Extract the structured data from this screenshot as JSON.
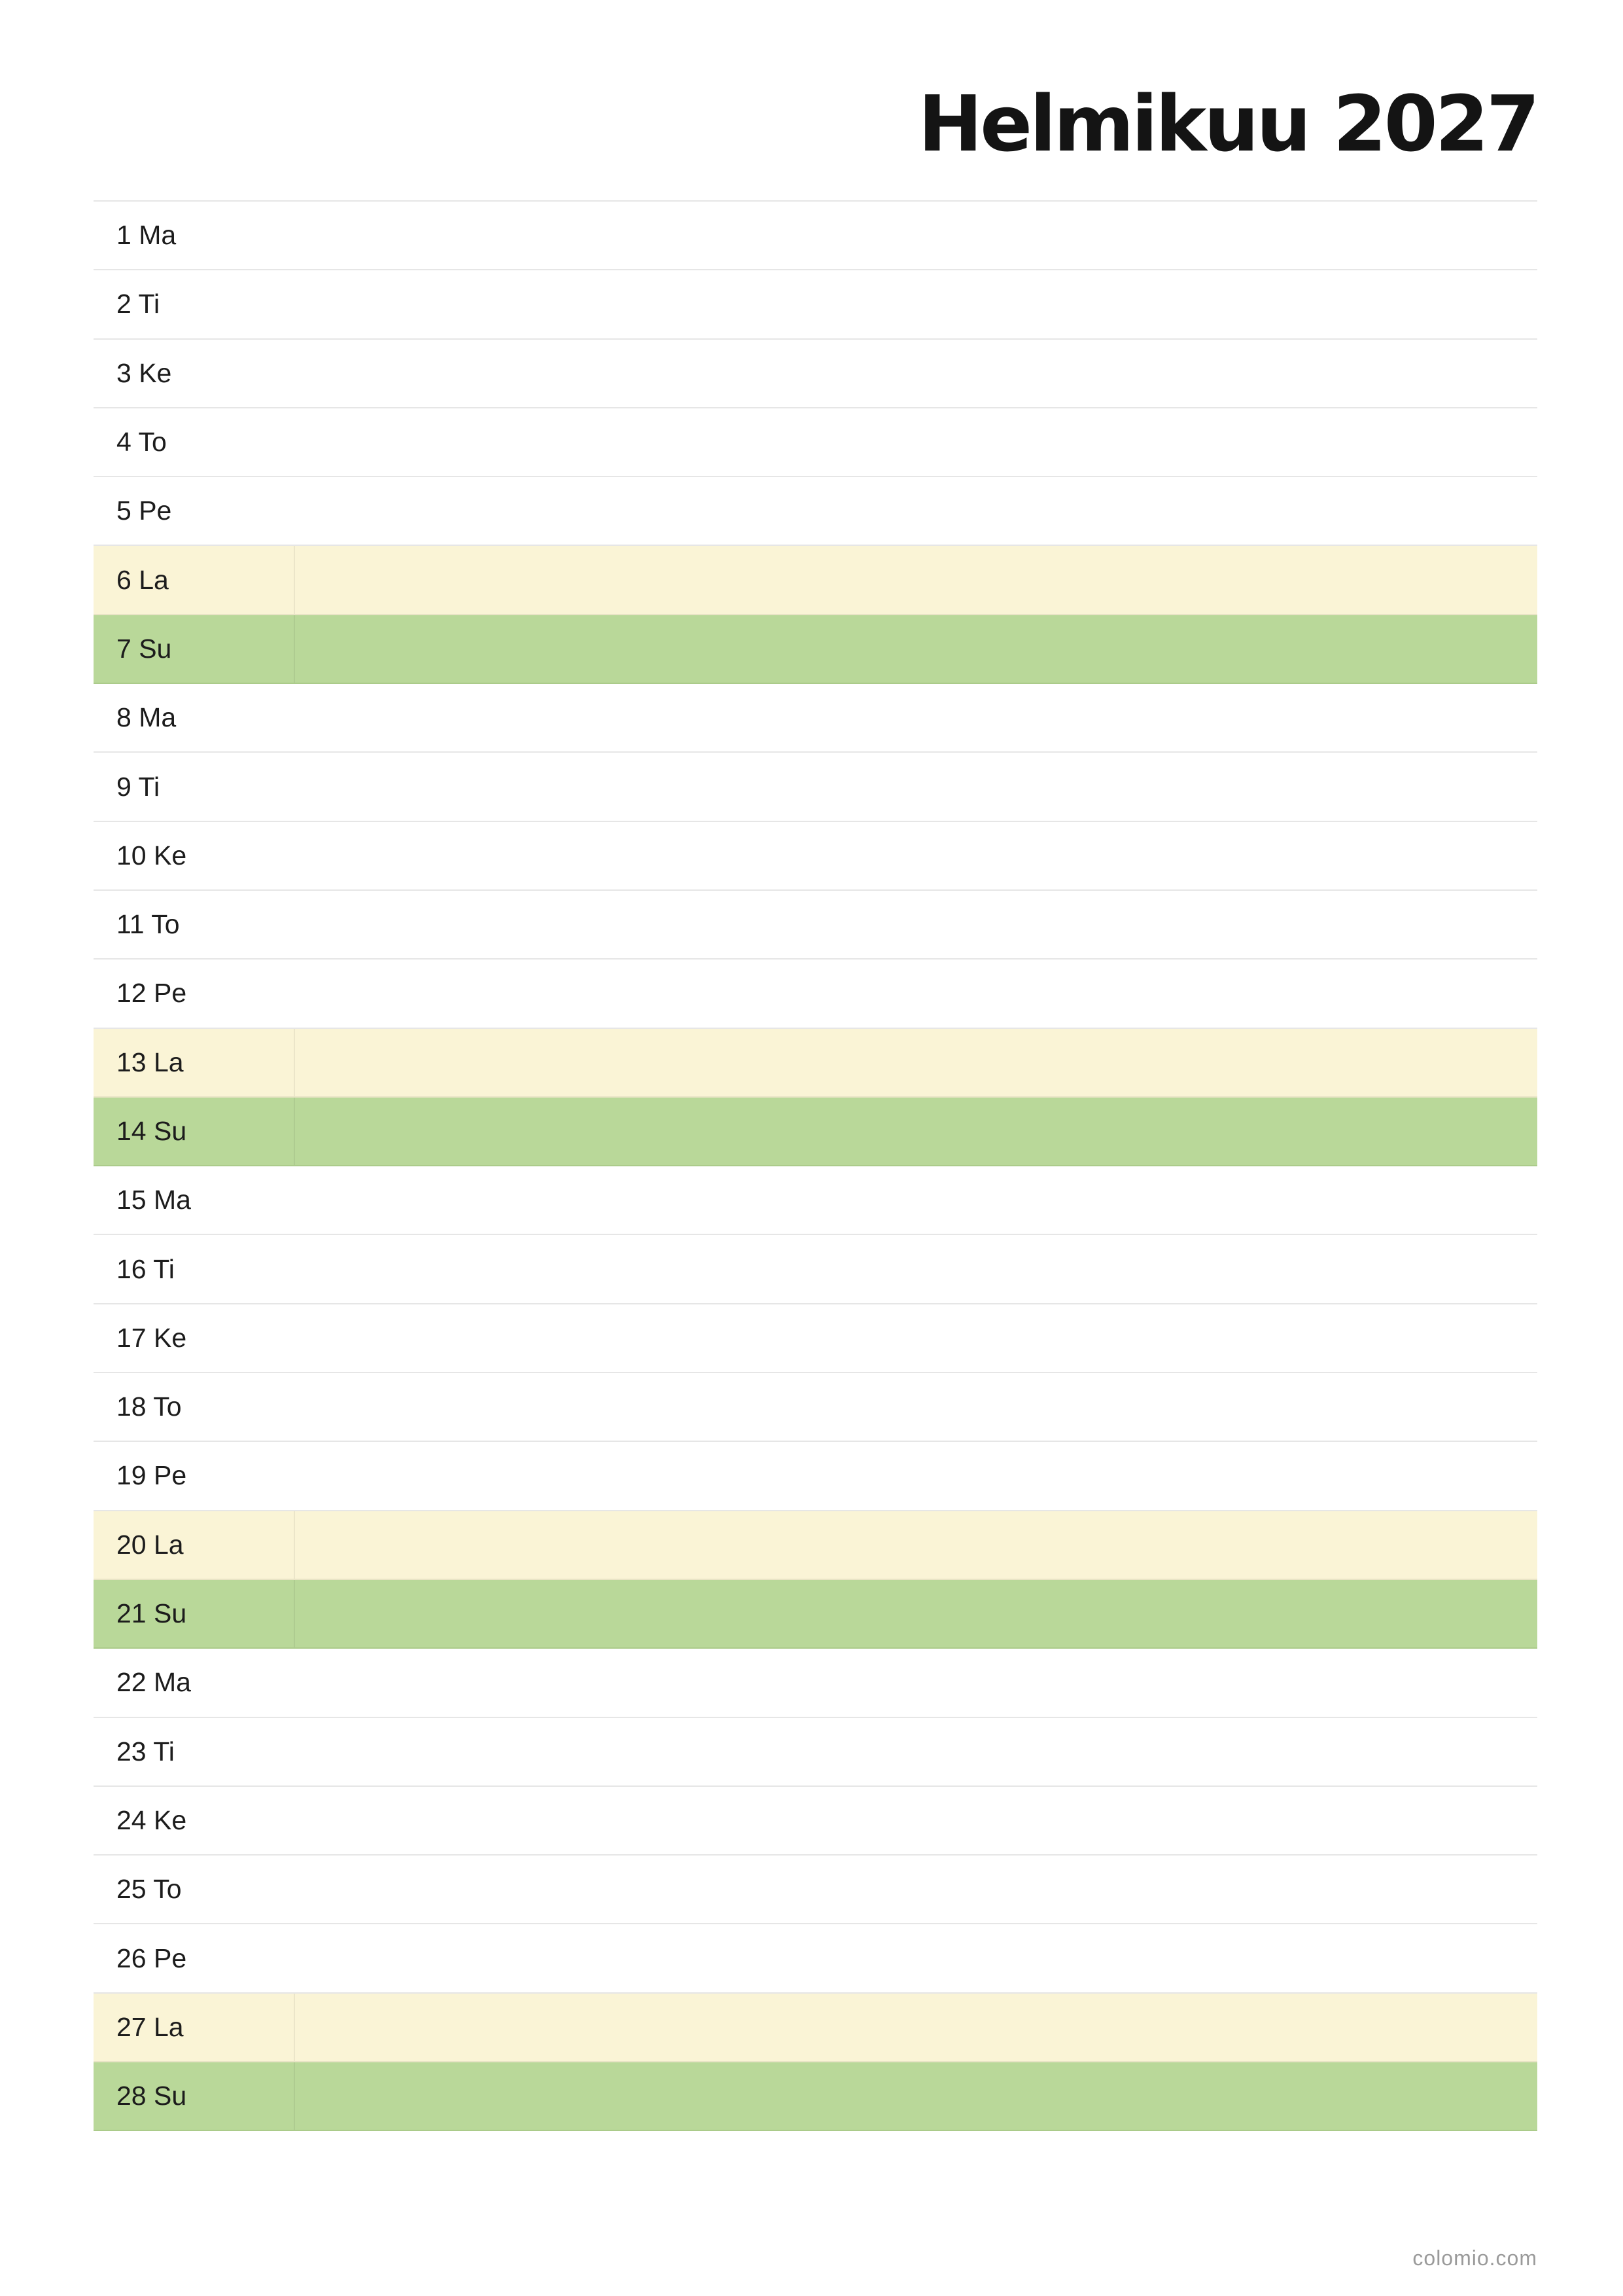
{
  "header": {
    "title": "Helmikuu 2027"
  },
  "calendar": {
    "days": [
      {
        "label": "1 Ma",
        "type": "weekday"
      },
      {
        "label": "2 Ti",
        "type": "weekday"
      },
      {
        "label": "3 Ke",
        "type": "weekday"
      },
      {
        "label": "4 To",
        "type": "weekday"
      },
      {
        "label": "5 Pe",
        "type": "weekday"
      },
      {
        "label": "6 La",
        "type": "saturday"
      },
      {
        "label": "7 Su",
        "type": "sunday"
      },
      {
        "label": "8 Ma",
        "type": "weekday"
      },
      {
        "label": "9 Ti",
        "type": "weekday"
      },
      {
        "label": "10 Ke",
        "type": "weekday"
      },
      {
        "label": "11 To",
        "type": "weekday"
      },
      {
        "label": "12 Pe",
        "type": "weekday"
      },
      {
        "label": "13 La",
        "type": "saturday"
      },
      {
        "label": "14 Su",
        "type": "sunday"
      },
      {
        "label": "15 Ma",
        "type": "weekday"
      },
      {
        "label": "16 Ti",
        "type": "weekday"
      },
      {
        "label": "17 Ke",
        "type": "weekday"
      },
      {
        "label": "18 To",
        "type": "weekday"
      },
      {
        "label": "19 Pe",
        "type": "weekday"
      },
      {
        "label": "20 La",
        "type": "saturday"
      },
      {
        "label": "21 Su",
        "type": "sunday"
      },
      {
        "label": "22 Ma",
        "type": "weekday"
      },
      {
        "label": "23 Ti",
        "type": "weekday"
      },
      {
        "label": "24 Ke",
        "type": "weekday"
      },
      {
        "label": "25 To",
        "type": "weekday"
      },
      {
        "label": "26 Pe",
        "type": "weekday"
      },
      {
        "label": "27 La",
        "type": "saturday"
      },
      {
        "label": "28 Su",
        "type": "sunday"
      }
    ]
  },
  "colors": {
    "saturday": "#faf4d6",
    "sunday": "#b9d899",
    "divider": "#e6e6e6"
  },
  "footer": {
    "credit": "colomio.com"
  }
}
